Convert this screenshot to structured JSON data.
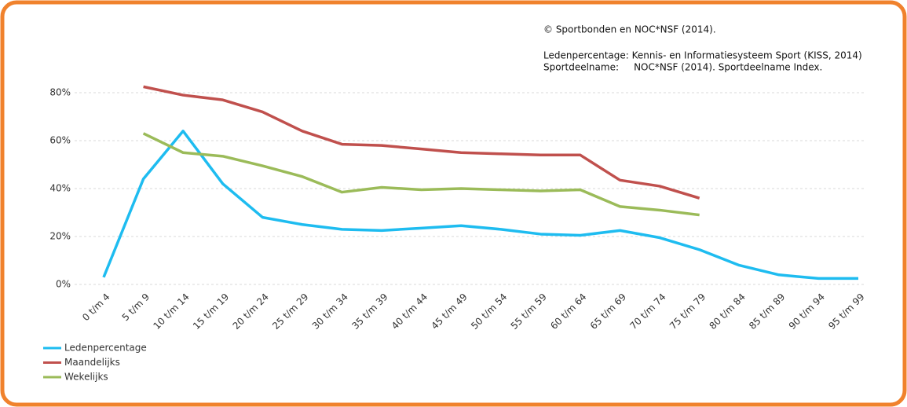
{
  "chart_data": {
    "type": "line",
    "annotations": [
      "© Sportbonden en NOC*NSF (2014).",
      "Ledenpercentage: Kennis- en Informatiesysteem Sport (KISS, 2014)",
      "Sportdeelname:     NOC*NSF (2014). Sportdeelname Index."
    ],
    "categories": [
      "0 t/m 4",
      "5 t/m 9",
      "10 t/m 14",
      "15 t/m 19",
      "20 t/m 24",
      "25 t/m 29",
      "30 t/m 34",
      "35 t/m 39",
      "40 t/m 44",
      "45 t/m 49",
      "50 t/m 54",
      "55 t/m 59",
      "60 t/m 64",
      "65 t/m 69",
      "70 t/m 74",
      "75 t/m 79",
      "80 t/m 84",
      "85 t/m 89",
      "90 t/m 94",
      "95 t/m 99"
    ],
    "series": [
      {
        "name": "Ledenpercentage",
        "color": "#1ebcf0",
        "values": [
          3,
          44,
          64,
          42,
          28,
          25,
          23,
          22.5,
          23.5,
          24.5,
          23,
          21,
          20.5,
          22.5,
          19.5,
          14.5,
          8,
          4,
          2.5,
          2.5
        ]
      },
      {
        "name": "Maandelijks",
        "color": "#c0504d",
        "values": [
          null,
          82.5,
          79,
          77,
          72,
          64,
          58.5,
          58,
          56.5,
          55,
          54.5,
          54,
          54,
          43.5,
          41,
          36,
          null,
          null,
          null,
          null
        ]
      },
      {
        "name": "Wekelijks",
        "color": "#9bbb59",
        "values": [
          null,
          63,
          55,
          53.5,
          49.5,
          45,
          38.5,
          40.5,
          39.5,
          40,
          39.5,
          39,
          39.5,
          32.5,
          31,
          29,
          null,
          null,
          null,
          null
        ]
      }
    ],
    "ylim": [
      0,
      85
    ],
    "yticks": [
      {
        "value": 0,
        "label": "0%"
      },
      {
        "value": 20,
        "label": "20%"
      },
      {
        "value": 40,
        "label": "40%"
      },
      {
        "value": 60,
        "label": "60%"
      },
      {
        "value": 80,
        "label": "80%"
      }
    ],
    "grid": true
  }
}
